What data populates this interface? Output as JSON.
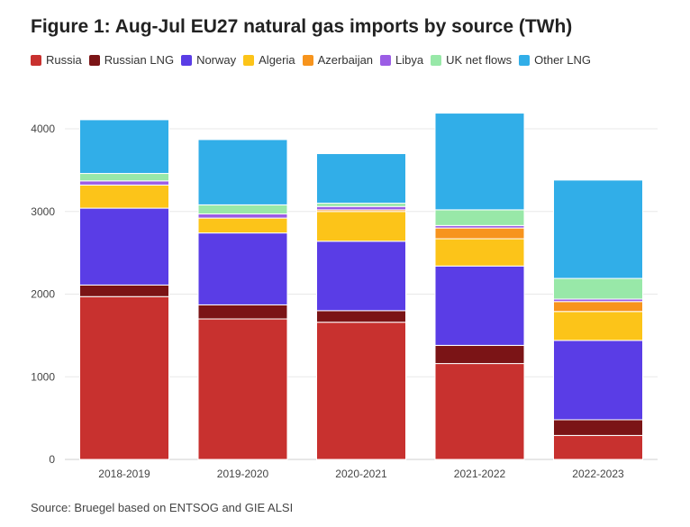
{
  "title": "Figure 1: Aug-Jul EU27 natural gas imports by source (TWh)",
  "source": "Source: Bruegel based on ENTSOG and GIE ALSI",
  "chart_data": {
    "type": "bar",
    "stacked": true,
    "title": "Figure 1: Aug-Jul EU27 natural gas imports by source (TWh)",
    "xlabel": "",
    "ylabel": "",
    "ylim": [
      0,
      4300
    ],
    "yticks": [
      "0",
      "1000",
      "2000",
      "3000",
      "4000"
    ],
    "grid": true,
    "legend_placement": "top",
    "categories": [
      "2018-2019",
      "2019-2020",
      "2020-2021",
      "2021-2022",
      "2022-2023"
    ],
    "series": [
      {
        "name": "Russia",
        "color": "#c8312f",
        "values": [
          1970,
          1700,
          1660,
          1160,
          290
        ]
      },
      {
        "name": "Russian LNG",
        "color": "#7b1416",
        "values": [
          140,
          170,
          140,
          220,
          190
        ]
      },
      {
        "name": "Norway",
        "color": "#5a3de6",
        "values": [
          930,
          870,
          840,
          960,
          960
        ]
      },
      {
        "name": "Algeria",
        "color": "#fcc419",
        "values": [
          280,
          180,
          360,
          330,
          350
        ]
      },
      {
        "name": "Azerbaijan",
        "color": "#f7941d",
        "values": [
          0,
          0,
          20,
          130,
          120
        ]
      },
      {
        "name": "Libya",
        "color": "#9b5de5",
        "values": [
          50,
          50,
          40,
          30,
          30
        ]
      },
      {
        "name": "UK net flows",
        "color": "#98e8a8",
        "values": [
          90,
          110,
          40,
          190,
          250
        ]
      },
      {
        "name": "Other LNG",
        "color": "#31aee8",
        "values": [
          650,
          790,
          600,
          1170,
          1190
        ]
      }
    ]
  }
}
